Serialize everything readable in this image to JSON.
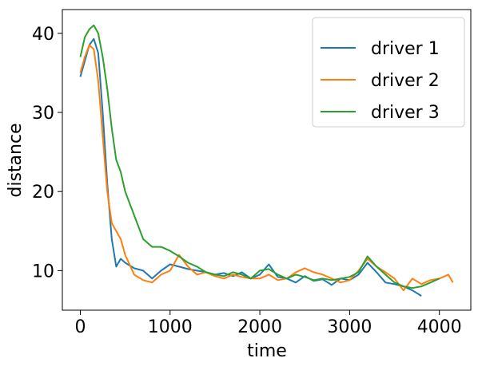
{
  "chart_data": {
    "type": "line",
    "title": "",
    "xlabel": "time",
    "ylabel": "distance",
    "xlim": [
      -200,
      4350
    ],
    "ylim": [
      5,
      43
    ],
    "xticks": [
      0,
      1000,
      2000,
      3000,
      4000
    ],
    "yticks": [
      10,
      20,
      30,
      40
    ],
    "grid": false,
    "legend_position": "top-right",
    "series": [
      {
        "name": "driver 1",
        "color": "#1f77b4",
        "x": [
          0,
          50,
          100,
          150,
          200,
          250,
          300,
          350,
          400,
          450,
          500,
          600,
          700,
          800,
          900,
          1000,
          1100,
          1200,
          1300,
          1400,
          1500,
          1600,
          1700,
          1800,
          1900,
          2000,
          2100,
          2150,
          2200,
          2300,
          2400,
          2500,
          2600,
          2700,
          2800,
          2900,
          3000,
          3100,
          3200,
          3300,
          3400,
          3500,
          3600,
          3700,
          3800
        ],
        "y": [
          34.5,
          36.5,
          38.5,
          39.3,
          37.5,
          30.0,
          21.0,
          14.0,
          10.5,
          11.5,
          11.0,
          10.3,
          10.0,
          9.0,
          10.0,
          10.8,
          10.5,
          10.2,
          10.0,
          9.8,
          9.5,
          9.7,
          9.3,
          9.8,
          9.0,
          9.5,
          10.8,
          10.0,
          9.2,
          9.0,
          8.5,
          9.3,
          8.7,
          8.9,
          8.2,
          9.0,
          8.8,
          9.5,
          11.0,
          9.8,
          8.5,
          8.3,
          8.0,
          7.5,
          6.8
        ]
      },
      {
        "name": "driver 2",
        "color": "#ff7f0e",
        "x": [
          0,
          50,
          100,
          150,
          200,
          250,
          300,
          350,
          400,
          450,
          500,
          600,
          700,
          800,
          900,
          1000,
          1100,
          1200,
          1300,
          1400,
          1500,
          1600,
          1700,
          1800,
          1900,
          2000,
          2100,
          2200,
          2300,
          2400,
          2500,
          2600,
          2700,
          2800,
          2900,
          3000,
          3100,
          3200,
          3300,
          3400,
          3500,
          3600,
          3700,
          3800,
          3900,
          4000,
          4100,
          4150
        ],
        "y": [
          35.0,
          37.0,
          38.5,
          38.0,
          34.0,
          27.0,
          20.0,
          16.0,
          15.0,
          14.0,
          12.0,
          9.5,
          8.8,
          8.5,
          9.5,
          10.0,
          12.0,
          10.5,
          9.5,
          9.8,
          9.3,
          9.0,
          9.5,
          9.2,
          9.0,
          9.0,
          9.5,
          8.8,
          9.0,
          9.8,
          10.3,
          9.8,
          9.5,
          9.0,
          8.5,
          8.8,
          10.0,
          11.5,
          10.5,
          9.8,
          9.0,
          7.5,
          9.0,
          8.3,
          8.8,
          9.0,
          9.5,
          8.5
        ]
      },
      {
        "name": "driver 3",
        "color": "#2ca02c",
        "x": [
          0,
          50,
          100,
          150,
          200,
          250,
          300,
          350,
          400,
          450,
          500,
          600,
          700,
          800,
          900,
          1000,
          1100,
          1200,
          1300,
          1400,
          1500,
          1600,
          1700,
          1800,
          1900,
          2000,
          2100,
          2200,
          2300,
          2400,
          2500,
          2600,
          2700,
          2800,
          2900,
          3000,
          3100,
          3200,
          3300,
          3400,
          3500,
          3600,
          3700,
          3800,
          3900,
          4000
        ],
        "y": [
          37.0,
          39.5,
          40.5,
          41.0,
          40.0,
          37.0,
          33.0,
          28.0,
          24.0,
          22.5,
          20.0,
          17.0,
          14.0,
          13.0,
          13.0,
          12.5,
          11.8,
          11.0,
          10.5,
          9.8,
          9.5,
          9.3,
          9.8,
          9.5,
          9.0,
          10.0,
          10.2,
          9.5,
          9.0,
          9.5,
          9.2,
          8.8,
          9.0,
          8.8,
          9.0,
          9.2,
          9.8,
          11.8,
          10.5,
          9.5,
          8.5,
          8.0,
          7.8,
          8.0,
          8.5,
          9.0
        ]
      }
    ]
  }
}
